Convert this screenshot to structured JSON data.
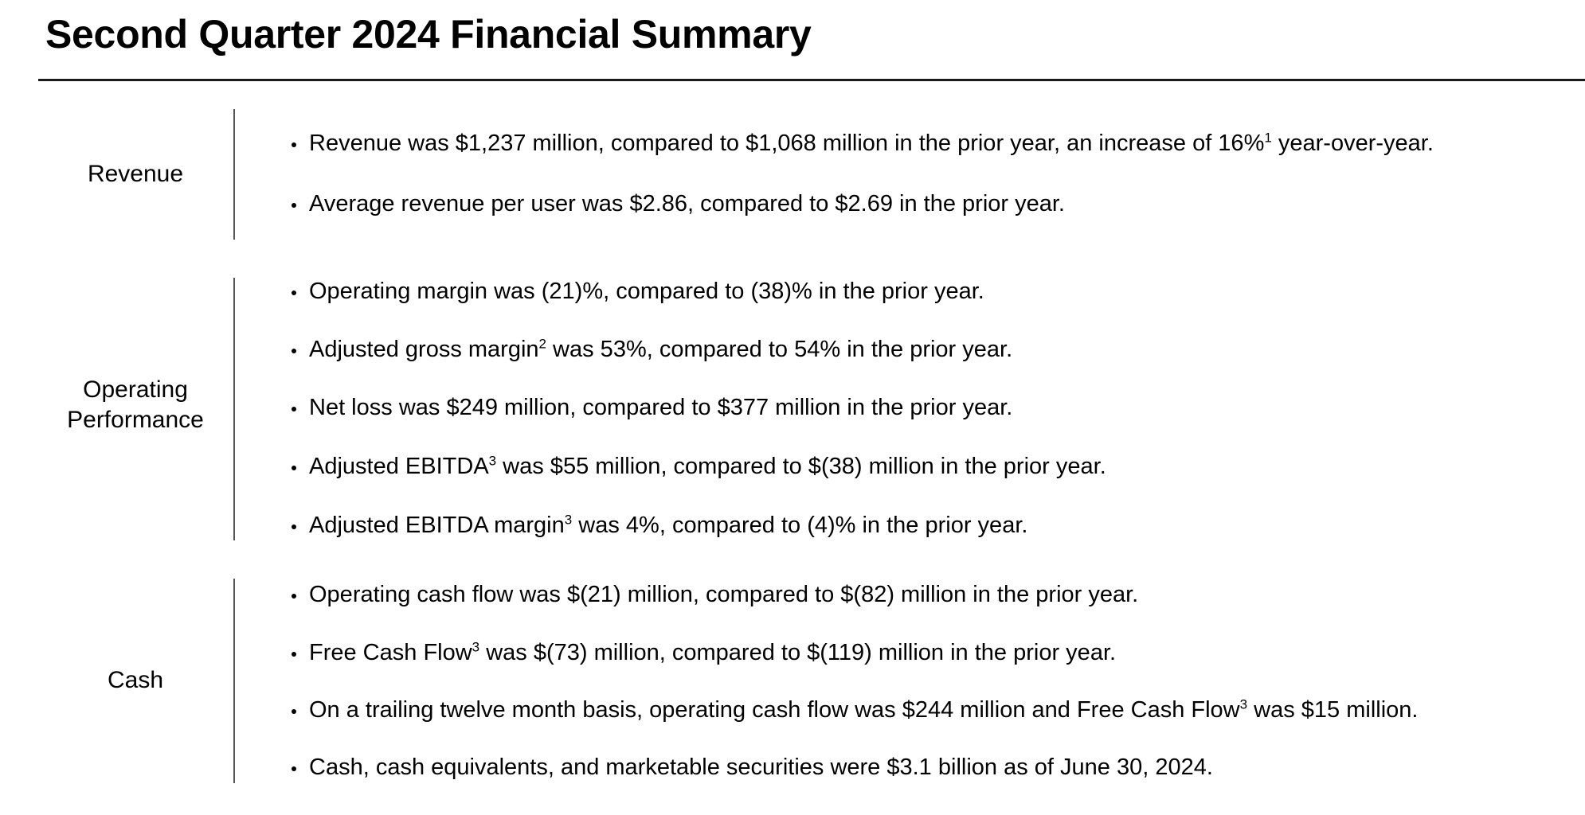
{
  "title": "Second Quarter 2024 Financial Summary",
  "sections": [
    {
      "label": "Revenue",
      "bullets": [
        {
          "parts": [
            "Revenue was $1,237 million, compared to $1,068 million in the prior year, an increase of 16%",
            "1",
            " year-over-year."
          ]
        },
        {
          "parts": [
            "Average revenue per user was $2.86, compared to $2.69 in the prior year."
          ]
        }
      ]
    },
    {
      "label": "Operating Performance",
      "label_lines": [
        "Operating",
        "Performance"
      ],
      "bullets": [
        {
          "parts": [
            "Operating margin was (21)%, compared to (38)% in the prior year."
          ]
        },
        {
          "parts": [
            "Adjusted gross margin",
            "2",
            " was 53%, compared to 54% in the prior year."
          ]
        },
        {
          "parts": [
            "Net loss was $249 million, compared to $377 million in the prior year."
          ]
        },
        {
          "parts": [
            "Adjusted EBITDA",
            "3",
            " was $55 million, compared to $(38) million in the prior year."
          ]
        },
        {
          "parts": [
            "Adjusted EBITDA margin",
            "3",
            " was 4%, compared to (4)% in the prior year."
          ]
        }
      ]
    },
    {
      "label": "Cash",
      "bullets": [
        {
          "parts": [
            "Operating cash flow was $(21) million, compared to $(82) million in the prior year."
          ]
        },
        {
          "parts": [
            "Free Cash Flow",
            "3",
            " was $(73) million, compared to $(119) million in the prior year."
          ]
        },
        {
          "parts": [
            "On a trailing twelve month basis, operating cash flow was $244 million and Free Cash Flow",
            "3",
            " was $15 million."
          ]
        },
        {
          "parts": [
            "Cash, cash equivalents, and marketable securities were $3.1 billion as of June 30, 2024."
          ]
        }
      ]
    }
  ]
}
